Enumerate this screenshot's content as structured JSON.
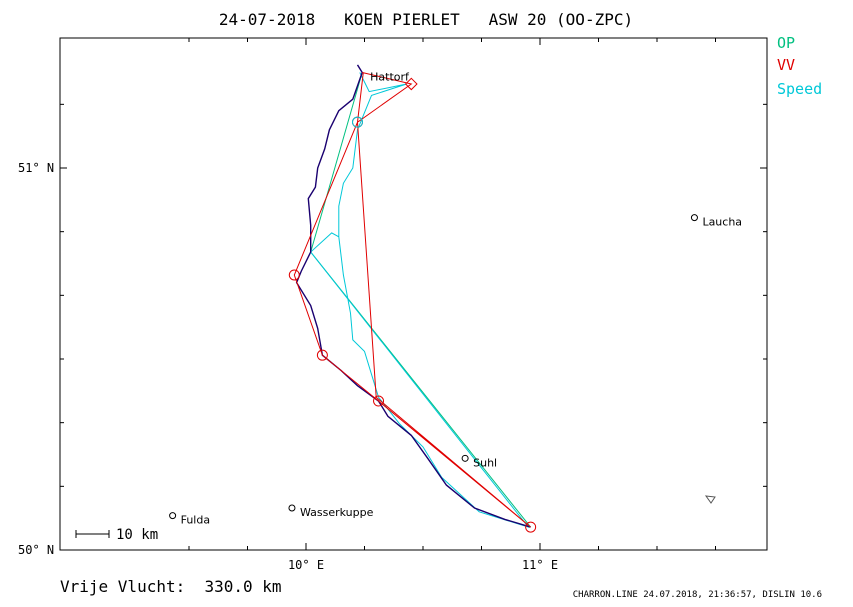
{
  "title": "24-07-2018   KOEN PIERLET   ASW 20 (OO-ZPC)",
  "legend": [
    {
      "label": "OP",
      "color": "#00c080"
    },
    {
      "label": "VV",
      "color": "#e00000"
    },
    {
      "label": "Speed",
      "color": "#00c8d8"
    }
  ],
  "axes": {
    "lat_labels": [
      "51° N",
      "50° N"
    ],
    "lon_labels": [
      "10° E",
      "11° E"
    ]
  },
  "places": [
    {
      "name": "Hattorf",
      "lon": 10.24,
      "lat": 51.25
    },
    {
      "name": "Laucha",
      "lon": 11.66,
      "lat": 50.87
    },
    {
      "name": "Suhl",
      "lon": 10.68,
      "lat": 50.24
    },
    {
      "name": "Fulda",
      "lon": 9.43,
      "lat": 50.09
    },
    {
      "name": "Wasserkuppe",
      "lon": 9.94,
      "lat": 50.11
    }
  ],
  "scale_bar": "10 km",
  "footer": {
    "distance_label": "Vrije Vlucht:  330.0 km",
    "file_info": "CHARRON.LINE 24.07.2018, 21:36:57, DISLIN 10.6"
  },
  "colors": {
    "track": "#1a0070",
    "vv": "#e00000",
    "op": "#00c080",
    "speed": "#00c8d8"
  },
  "routes": {
    "vv_turnpoints": [
      {
        "lon": 10.245,
        "lat": 51.25
      },
      {
        "lon": 10.22,
        "lat": 51.12
      },
      {
        "lon": 9.95,
        "lat": 50.72
      },
      {
        "lon": 10.07,
        "lat": 50.51
      },
      {
        "lon": 10.31,
        "lat": 50.39
      },
      {
        "lon": 10.96,
        "lat": 50.06
      },
      {
        "lon": 10.3,
        "lat": 50.4
      },
      {
        "lon": 10.22,
        "lat": 51.12
      },
      {
        "lon": 10.45,
        "lat": 51.22
      },
      {
        "lon": 10.24,
        "lat": 51.25
      }
    ],
    "op_line": [
      {
        "lon": 10.24,
        "lat": 51.25
      },
      {
        "lon": 10.02,
        "lat": 50.78
      },
      {
        "lon": 10.96,
        "lat": 50.06
      }
    ],
    "speed_track": [
      {
        "lon": 10.23,
        "lat": 51.25
      },
      {
        "lon": 10.27,
        "lat": 51.2
      },
      {
        "lon": 10.43,
        "lat": 51.22
      },
      {
        "lon": 10.28,
        "lat": 51.19
      },
      {
        "lon": 10.22,
        "lat": 51.1
      },
      {
        "lon": 10.2,
        "lat": 51.0
      },
      {
        "lon": 10.16,
        "lat": 50.96
      },
      {
        "lon": 10.14,
        "lat": 50.9
      },
      {
        "lon": 10.14,
        "lat": 50.82
      },
      {
        "lon": 10.16,
        "lat": 50.72
      },
      {
        "lon": 10.19,
        "lat": 50.62
      },
      {
        "lon": 10.2,
        "lat": 50.55
      },
      {
        "lon": 10.25,
        "lat": 50.52
      },
      {
        "lon": 10.28,
        "lat": 50.46
      },
      {
        "lon": 10.31,
        "lat": 50.4
      },
      {
        "lon": 10.4,
        "lat": 50.33
      },
      {
        "lon": 10.5,
        "lat": 50.27
      },
      {
        "lon": 10.58,
        "lat": 50.19
      },
      {
        "lon": 10.74,
        "lat": 50.1
      },
      {
        "lon": 10.95,
        "lat": 50.06
      },
      {
        "lon": 10.02,
        "lat": 50.78
      },
      {
        "lon": 10.11,
        "lat": 50.83
      },
      {
        "lon": 10.14,
        "lat": 50.82
      }
    ],
    "flight_track": [
      {
        "lon": 10.22,
        "lat": 51.27
      },
      {
        "lon": 10.24,
        "lat": 51.25
      },
      {
        "lon": 10.2,
        "lat": 51.18
      },
      {
        "lon": 10.14,
        "lat": 51.15
      },
      {
        "lon": 10.1,
        "lat": 51.1
      },
      {
        "lon": 10.08,
        "lat": 51.05
      },
      {
        "lon": 10.05,
        "lat": 51.0
      },
      {
        "lon": 10.04,
        "lat": 50.95
      },
      {
        "lon": 10.01,
        "lat": 50.92
      },
      {
        "lon": 10.02,
        "lat": 50.85
      },
      {
        "lon": 10.02,
        "lat": 50.78
      },
      {
        "lon": 9.98,
        "lat": 50.73
      },
      {
        "lon": 9.96,
        "lat": 50.7
      },
      {
        "lon": 10.02,
        "lat": 50.64
      },
      {
        "lon": 10.05,
        "lat": 50.58
      },
      {
        "lon": 10.07,
        "lat": 50.51
      },
      {
        "lon": 10.15,
        "lat": 50.47
      },
      {
        "lon": 10.22,
        "lat": 50.43
      },
      {
        "lon": 10.31,
        "lat": 50.39
      },
      {
        "lon": 10.35,
        "lat": 50.35
      },
      {
        "lon": 10.45,
        "lat": 50.3
      },
      {
        "lon": 10.52,
        "lat": 50.24
      },
      {
        "lon": 10.6,
        "lat": 50.17
      },
      {
        "lon": 10.72,
        "lat": 50.11
      },
      {
        "lon": 10.85,
        "lat": 50.08
      },
      {
        "lon": 10.96,
        "lat": 50.06
      }
    ]
  }
}
